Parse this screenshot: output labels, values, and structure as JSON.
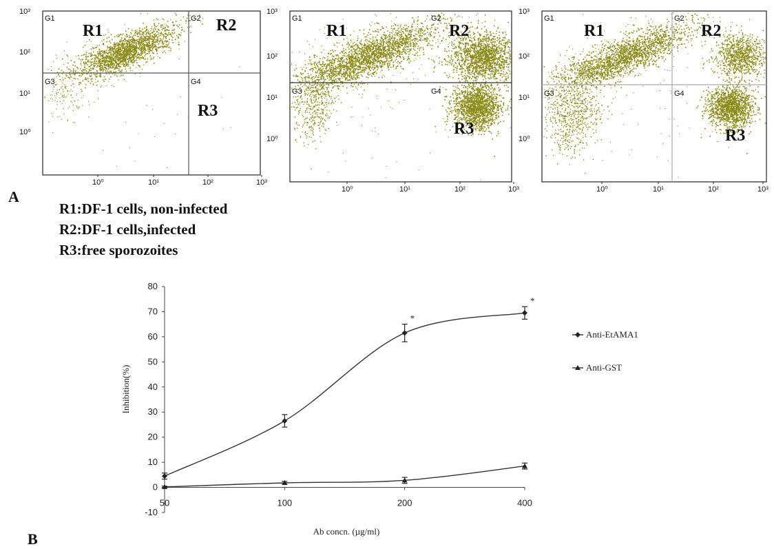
{
  "panel_letters": {
    "a": "A",
    "b": "B"
  },
  "flow_panels": [
    {
      "gate_labels": [
        "G1",
        "G2",
        "G3",
        "G4"
      ],
      "regions": [
        "R1",
        "R2",
        "R3"
      ],
      "y_ticks": [
        "10³",
        "10²",
        "10¹",
        "10⁰"
      ],
      "x_ticks": [
        "10⁰",
        "10¹",
        "10²",
        "10³"
      ],
      "populations": {
        "R1": true,
        "R2": false,
        "R3": false
      },
      "dot_color": "#8c8a16"
    },
    {
      "gate_labels": [
        "G1",
        "G2",
        "G3",
        "G4"
      ],
      "regions": [
        "R1",
        "R2",
        "R3"
      ],
      "y_ticks": [
        "10³",
        "10²",
        "10¹",
        "10⁰"
      ],
      "x_ticks": [
        "10⁰",
        "10¹",
        "10²",
        "10³"
      ],
      "populations": {
        "R1": true,
        "R2": true,
        "R3": true
      },
      "dot_color": "#8c8a16"
    },
    {
      "gate_labels": [
        "G1",
        "G2",
        "G3",
        "G4"
      ],
      "regions": [
        "R1",
        "R2",
        "R3"
      ],
      "y_ticks": [
        "10³",
        "10²",
        "10¹",
        "10⁰"
      ],
      "x_ticks": [
        "10⁰",
        "10¹",
        "10²",
        "10³"
      ],
      "populations": {
        "R1": true,
        "R2": true,
        "R3": true
      },
      "dot_color": "#8c8a16"
    }
  ],
  "region_legend": [
    "R1:DF-1 cells, non-infected",
    "R2:DF-1 cells,infected",
    "R3:free sporozoites"
  ],
  "chart_data": {
    "type": "line",
    "categories": [
      "50",
      "100",
      "200",
      "400"
    ],
    "xlabel": "Ab concn. (µg/ml)",
    "ylabel": "Inhibition(%)",
    "ylim": [
      -10,
      80
    ],
    "yticks": [
      80,
      70,
      60,
      50,
      40,
      30,
      20,
      10,
      0,
      -10
    ],
    "legend_position": "right",
    "series": [
      {
        "name": "Anti-EtAMA1",
        "marker": "diamond",
        "values": [
          4.5,
          26.5,
          61.5,
          69.5
        ],
        "errors": [
          1.2,
          2.5,
          3.5,
          2.5
        ]
      },
      {
        "name": "Anti-GST",
        "marker": "triangle",
        "values": [
          0.2,
          1.8,
          2.8,
          8.5
        ],
        "errors": [
          0.3,
          0.6,
          1.2,
          1.2
        ]
      }
    ],
    "annotations": [
      {
        "category": "200",
        "text": "*"
      },
      {
        "category": "400",
        "text": "*"
      }
    ]
  }
}
